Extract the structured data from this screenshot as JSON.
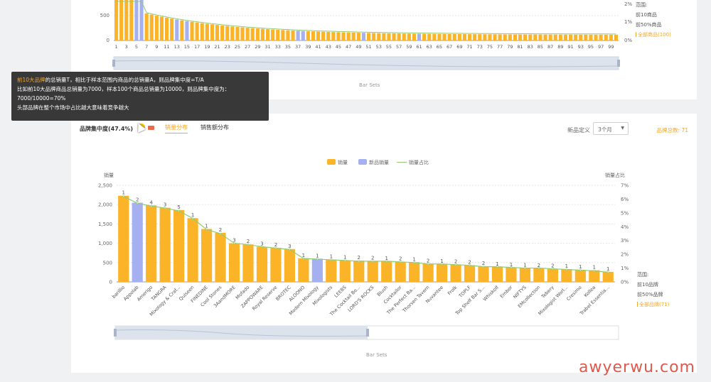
{
  "top_chart": {
    "y_ticks": [
      "500",
      "0"
    ],
    "y2_ticks": [
      "2%",
      "1%",
      "0%"
    ],
    "x_labels": [
      "1",
      "3",
      "5",
      "7",
      "9",
      "11",
      "13",
      "15",
      "17",
      "19",
      "21",
      "23",
      "25",
      "27",
      "29",
      "31",
      "33",
      "35",
      "37",
      "39",
      "41",
      "43",
      "45",
      "47",
      "49",
      "51",
      "53",
      "55",
      "57",
      "59",
      "61",
      "63",
      "65",
      "67",
      "69",
      "71",
      "73",
      "75",
      "77",
      "79",
      "81",
      "83",
      "85",
      "87",
      "89",
      "91",
      "93",
      "95",
      "97",
      "99"
    ],
    "range": {
      "title": "范围:",
      "items": [
        "前10商品",
        "前50%商品",
        "全部商品(100)"
      ],
      "active_index": 2
    },
    "slider_label": "Bar Sets"
  },
  "tooltip": {
    "line1_highlight": "前10大品牌",
    "line1_rest": "的总销量T，相比于样本范围内商品的总销量A，则品牌集中度=T/A",
    "line2": "比如前10大品牌商品总销量为7000，样本100个商品总销量为10000，则品牌集中度为：",
    "line3": "7000/10000=70%",
    "line4": "头部品牌在整个市场中占比越大意味着竞争越大"
  },
  "header": {
    "title": "品牌集中度(47.4%)",
    "tab_sales": "销量分布",
    "tab_revenue": "销售额分布",
    "new_def_label": "新品定义",
    "select_value": "3个月",
    "brand_count": "品牌总数: 71"
  },
  "legend": {
    "sales": "销量",
    "new_sales": "新品销量",
    "share": "销量占比"
  },
  "range": {
    "title": "范围:",
    "items": [
      "前10品牌",
      "前50%品牌",
      "全部品牌(71)"
    ],
    "active_index": 2
  },
  "slider_label": "Bar Sets",
  "watermark": "awyerwu.com",
  "colors": {
    "bar": "#fbb328",
    "new_bar": "#a4b0ef",
    "line": "#91cc75",
    "accent": "#f5a623"
  },
  "chart_data": {
    "type": "bar",
    "ylabel": "销量",
    "y2label": "销量占比",
    "ylim": [
      0,
      2500
    ],
    "y2lim": [
      0,
      7
    ],
    "y_ticks": [
      0,
      500,
      1000,
      1500,
      2000,
      2500
    ],
    "y2_ticks": [
      "0%",
      "1%",
      "2%",
      "3%",
      "4%",
      "5%",
      "6%",
      "7%"
    ],
    "categories": [
      "barillio",
      "Appolab",
      "Amerigo",
      "TANGRA",
      "Mixology & Craf...",
      "Quiseen",
      "FINEDINE",
      "Cool Stones",
      "3AandMORE",
      "Mofado",
      "ZAPPOWARE",
      "Royal Reserve",
      "BROTEC",
      "ALOONO",
      "Modern Mixology",
      "Mixologists",
      "LEEBS",
      "The Cocktail Bo...",
      "LORD'S ROCKS",
      "Blush",
      "Cocktailor",
      "The Perfect Ba...",
      "Thorsen Tavern",
      "Nuvantee",
      "Frolk",
      "TOPLF",
      "Top Shelf Bar S...",
      "Whiskolf",
      "Embor",
      "NIFTYS",
      "EMcollection",
      "Tebery",
      "Mixologist Worl...",
      "Cresimo",
      "Kollea",
      "Trabel Essentia..."
    ],
    "sales": [
      2230,
      2050,
      1980,
      1920,
      1860,
      1650,
      1370,
      1270,
      1000,
      970,
      910,
      880,
      850,
      610,
      600,
      580,
      560,
      550,
      540,
      530,
      520,
      510,
      470,
      460,
      450,
      430,
      400,
      390,
      370,
      360,
      350,
      340,
      330,
      310,
      300,
      260
    ],
    "is_new": [
      false,
      true,
      false,
      false,
      false,
      false,
      false,
      false,
      false,
      false,
      false,
      false,
      false,
      false,
      true,
      false,
      false,
      false,
      false,
      false,
      false,
      false,
      false,
      false,
      false,
      false,
      false,
      false,
      false,
      false,
      false,
      false,
      false,
      false,
      false,
      false
    ],
    "bar_labels": [
      "1",
      "2",
      "4",
      "3",
      "5",
      "1",
      "1",
      "2",
      "3",
      "2",
      "3",
      "2",
      "3",
      "1",
      "1",
      "1",
      "1",
      "2",
      "2",
      "1",
      "2",
      "1",
      "2",
      "1",
      "2",
      "2",
      "2",
      "1",
      "1",
      "1",
      "2",
      "2",
      "1",
      "1",
      "1",
      "1"
    ],
    "share_percent": [
      6.2,
      5.7,
      5.5,
      5.35,
      5.15,
      4.6,
      3.8,
      3.5,
      2.8,
      2.7,
      2.55,
      2.45,
      2.35,
      1.7,
      1.65,
      1.6,
      1.55,
      1.5,
      1.5,
      1.5,
      1.45,
      1.4,
      1.3,
      1.3,
      1.25,
      1.2,
      1.1,
      1.1,
      1.05,
      1.0,
      1.0,
      0.95,
      0.9,
      0.85,
      0.8,
      0.7
    ]
  }
}
